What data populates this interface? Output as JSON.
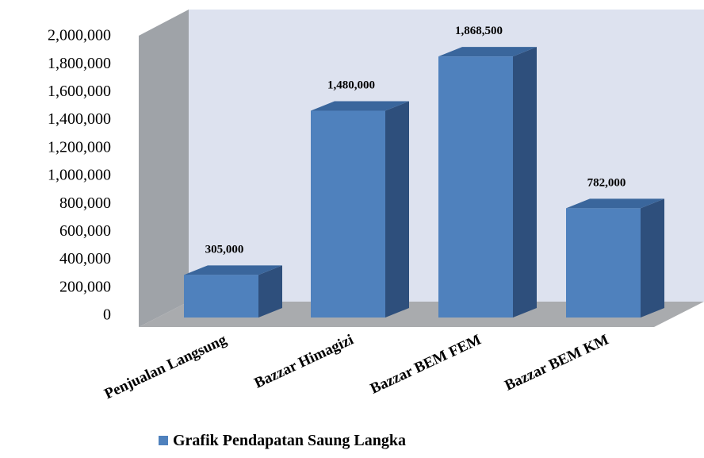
{
  "chart_data": {
    "type": "bar",
    "categories": [
      "Penjualan Langsung",
      "Bazzar Himagizi",
      "Bazzar BEM FEM",
      "Bazzar BEM KM"
    ],
    "series": [
      {
        "name": "Grafik Pendapatan Saung Langka",
        "values": [
          305000,
          1480000,
          1868500,
          782000
        ]
      }
    ],
    "data_labels": [
      "305,000",
      "1,480,000",
      "1,868,500",
      "782,000"
    ],
    "y_ticks": [
      0,
      200000,
      400000,
      600000,
      800000,
      1000000,
      1200000,
      1400000,
      1600000,
      1800000,
      2000000
    ],
    "y_tick_labels": [
      "0",
      "200,000",
      "400,000",
      "600,000",
      "800,000",
      "1,000,000",
      "1,200,000",
      "1,400,000",
      "1,600,000",
      "1,800,000",
      "2,000,000"
    ],
    "ylim": [
      0,
      2000000
    ],
    "title": "",
    "xlabel": "",
    "ylabel": "",
    "grid": false,
    "legend_position": "bottom",
    "style": "3d-column",
    "colors": {
      "bar_front": "#4f81bd",
      "bar_side": "#2e4f7c",
      "bar_top": "#3a669c",
      "back_wall": "#dde2ef",
      "side_wall": "#9fa3a8",
      "floor": "#a9abae"
    }
  }
}
